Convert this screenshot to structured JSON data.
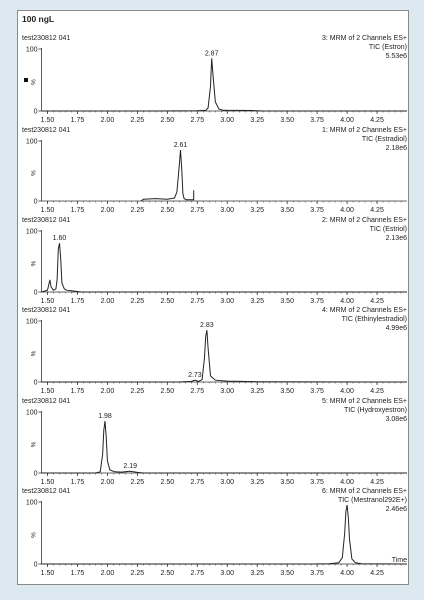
{
  "header": {
    "title": "100 ngL"
  },
  "colors": {
    "background": "#dde9f1",
    "trace": "#222222",
    "axis": "#333333"
  },
  "chart_data": [
    {
      "type": "line",
      "sample": "test230812 041",
      "channel": "3: MRM of 2 Channels ES+",
      "tic": "TIC (Estron)",
      "intensity": "5.53e6",
      "ylabel": "%",
      "xlim": [
        1.45,
        4.5
      ],
      "ylim": [
        0,
        100
      ],
      "x_ticks": [
        "1.50",
        "1.75",
        "2.00",
        "2.25",
        "2.50",
        "2.75",
        "3.00",
        "3.25",
        "3.50",
        "3.75",
        "4.00",
        "4.25"
      ],
      "y_ticks": [
        "0",
        "100"
      ],
      "peaks": [
        {
          "rt": 2.87,
          "label": "2.87",
          "height": 85
        }
      ],
      "x": [
        1.45,
        2.4,
        2.75,
        2.82,
        2.84,
        2.86,
        2.87,
        2.88,
        2.9,
        2.93,
        2.96,
        3.0,
        3.2,
        3.3,
        4.5
      ],
      "y": [
        0,
        0,
        0.5,
        1,
        5,
        40,
        85,
        60,
        15,
        3,
        1.5,
        1.2,
        0.8,
        0,
        0
      ]
    },
    {
      "type": "line",
      "sample": "test230812 041",
      "channel": "1: MRM of 2 Channels ES+",
      "tic": "TIC (Estradiol)",
      "intensity": "2.18e6",
      "ylabel": "%",
      "xlim": [
        1.45,
        4.5
      ],
      "ylim": [
        0,
        100
      ],
      "x_ticks": [
        "1.50",
        "1.75",
        "2.00",
        "2.25",
        "2.50",
        "2.75",
        "3.00",
        "3.25",
        "3.50",
        "3.75",
        "4.00",
        "4.25"
      ],
      "y_ticks": [
        "0",
        "100"
      ],
      "peaks": [
        {
          "rt": 2.61,
          "label": "2.61",
          "height": 85
        }
      ],
      "x": [
        2.28,
        2.3,
        2.4,
        2.5,
        2.56,
        2.58,
        2.6,
        2.61,
        2.62,
        2.63,
        2.64,
        2.66,
        2.7,
        2.72,
        2.72
      ],
      "y": [
        0,
        3,
        4,
        3,
        5,
        15,
        60,
        85,
        55,
        12,
        4,
        2,
        2,
        2,
        18
      ]
    },
    {
      "type": "line",
      "sample": "test230812 041",
      "channel": "2: MRM of 2 Channels ES+",
      "tic": "TIC (Estriol)",
      "intensity": "2.13e6",
      "ylabel": "%",
      "xlim": [
        1.45,
        4.5
      ],
      "ylim": [
        0,
        100
      ],
      "x_ticks": [
        "1.50",
        "1.75",
        "2.00",
        "2.25",
        "2.50",
        "2.75",
        "3.00",
        "3.25",
        "3.50",
        "3.75",
        "4.00",
        "4.25"
      ],
      "y_ticks": [
        "0",
        "100"
      ],
      "peaks": [
        {
          "rt": 1.6,
          "label": "1.60",
          "height": 80
        }
      ],
      "x": [
        1.45,
        1.5,
        1.52,
        1.53,
        1.55,
        1.57,
        1.58,
        1.59,
        1.6,
        1.61,
        1.62,
        1.64,
        1.66,
        1.7,
        1.78,
        4.5
      ],
      "y": [
        0,
        3,
        20,
        8,
        3,
        5,
        20,
        70,
        80,
        55,
        15,
        5,
        3,
        2,
        0,
        0
      ]
    },
    {
      "type": "line",
      "sample": "test230812 041",
      "channel": "4: MRM of 2 Channels ES+",
      "tic": "TIC (Ethinylestradiol)",
      "intensity": "4.99e6",
      "ylabel": "%",
      "xlim": [
        1.45,
        4.5
      ],
      "ylim": [
        0,
        100
      ],
      "x_ticks": [
        "1.50",
        "1.75",
        "2.00",
        "2.25",
        "2.50",
        "2.75",
        "3.00",
        "3.25",
        "3.50",
        "3.75",
        "4.00",
        "4.25"
      ],
      "y_ticks": [
        "0",
        "100"
      ],
      "peaks": [
        {
          "rt": 2.83,
          "label": "2.83",
          "height": 85
        },
        {
          "rt": 2.73,
          "label": "2.73",
          "height": 3
        }
      ],
      "x": [
        1.45,
        2.6,
        2.7,
        2.73,
        2.76,
        2.79,
        2.81,
        2.82,
        2.83,
        2.84,
        2.86,
        2.9,
        3.0,
        3.25,
        4.5
      ],
      "y": [
        0,
        0,
        1,
        3,
        1,
        4,
        40,
        75,
        85,
        55,
        10,
        3,
        1.5,
        0.5,
        0
      ]
    },
    {
      "type": "line",
      "sample": "test230812 041",
      "channel": "5: MRM of 2 Channels ES+",
      "tic": "TIC (Hydroxyestron)",
      "intensity": "3.08e6",
      "ylabel": "%",
      "xlim": [
        1.45,
        4.5
      ],
      "ylim": [
        0,
        100
      ],
      "x_ticks": [
        "1.50",
        "1.75",
        "2.00",
        "2.25",
        "2.50",
        "2.75",
        "3.00",
        "3.25",
        "3.50",
        "3.75",
        "4.00",
        "4.25"
      ],
      "y_ticks": [
        "0",
        "100"
      ],
      "peaks": [
        {
          "rt": 1.98,
          "label": "1.98",
          "height": 85
        },
        {
          "rt": 2.19,
          "label": "2.19",
          "height": 3
        }
      ],
      "x": [
        1.45,
        1.9,
        1.94,
        1.96,
        1.97,
        1.98,
        1.99,
        2.0,
        2.02,
        2.06,
        2.12,
        2.19,
        2.25,
        2.3,
        4.5
      ],
      "y": [
        0,
        0,
        2,
        30,
        70,
        85,
        60,
        20,
        5,
        2,
        1.5,
        3,
        1,
        0,
        0
      ]
    },
    {
      "type": "line",
      "sample": "test230812 041",
      "channel": "6: MRM of 2 Channels ES+",
      "tic": "TIC (Mestranol292E+)",
      "intensity": "2.46e6",
      "ylabel": "%",
      "xlabel": "Time",
      "xlim": [
        1.45,
        4.5
      ],
      "ylim": [
        0,
        100
      ],
      "x_ticks": [
        "1.50",
        "1.75",
        "2.00",
        "2.25",
        "2.50",
        "2.75",
        "3.00",
        "3.25",
        "3.50",
        "3.75",
        "4.00",
        "4.25"
      ],
      "y_ticks": [
        "0",
        "100"
      ],
      "peaks": [
        {
          "rt": 4.0,
          "label": "",
          "height": 95
        }
      ],
      "x": [
        1.45,
        3.7,
        3.85,
        3.93,
        3.96,
        3.98,
        3.99,
        4.0,
        4.01,
        4.02,
        4.04,
        4.07,
        4.12,
        4.5
      ],
      "y": [
        0,
        0,
        0.5,
        2,
        10,
        50,
        85,
        95,
        75,
        40,
        8,
        2,
        0.5,
        0
      ]
    }
  ]
}
